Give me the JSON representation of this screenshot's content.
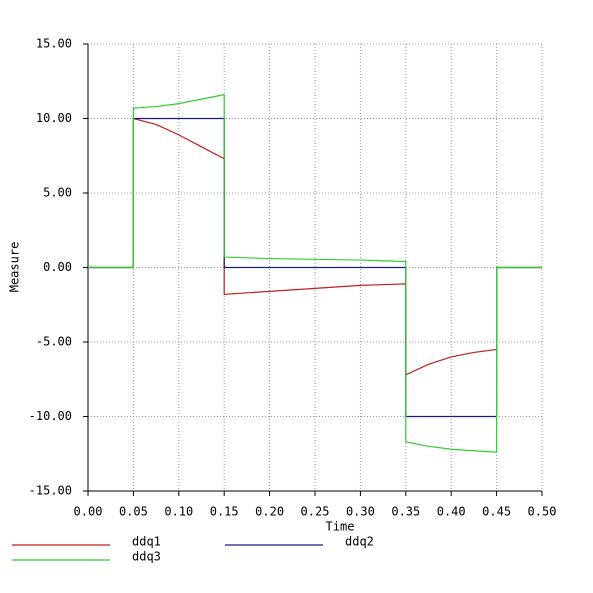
{
  "chart_data": {
    "type": "line",
    "x_label": "Time",
    "y_label": "Measure",
    "x": [
      0,
      0.05,
      0.05,
      0.075,
      0.1,
      0.125,
      0.15,
      0.15,
      0.2,
      0.25,
      0.3,
      0.35,
      0.35,
      0.375,
      0.4,
      0.425,
      0.45,
      0.45,
      0.5
    ],
    "series": [
      {
        "name": "ddq1",
        "color": "#c02020",
        "values": [
          0,
          0,
          10,
          9.6,
          8.9,
          8.1,
          7.3,
          -1.8,
          -1.6,
          -1.4,
          -1.2,
          -1.1,
          -7.2,
          -6.5,
          -6.0,
          -5.7,
          -5.5,
          0,
          0
        ]
      },
      {
        "name": "ddq2",
        "color": "#1a1a80",
        "values": [
          0,
          0,
          10,
          10,
          10,
          10,
          10,
          0,
          0,
          0,
          0,
          0,
          -10,
          -10,
          -10,
          -10,
          -10,
          0,
          0
        ]
      },
      {
        "name": "ddq3",
        "color": "#33cc33",
        "values": [
          0,
          0,
          10.7,
          10.8,
          11.0,
          11.3,
          11.6,
          0.7,
          0.6,
          0.55,
          0.5,
          0.4,
          -11.7,
          -12.0,
          -12.2,
          -12.3,
          -12.4,
          0,
          0
        ]
      }
    ],
    "xlim": [
      0,
      0.5
    ],
    "ylim": [
      -15,
      15
    ],
    "xticks": [
      {
        "value": 0,
        "label": "0.00"
      },
      {
        "value": 0.05,
        "label": "0.05"
      },
      {
        "value": 0.1,
        "label": "0.10"
      },
      {
        "value": 0.15,
        "label": "0.15"
      },
      {
        "value": 0.2,
        "label": "0.20"
      },
      {
        "value": 0.25,
        "label": "0.25"
      },
      {
        "value": 0.3,
        "label": "0.30"
      },
      {
        "value": 0.35,
        "label": "0.35"
      },
      {
        "value": 0.4,
        "label": "0.40"
      },
      {
        "value": 0.45,
        "label": "0.45"
      },
      {
        "value": 0.5,
        "label": "0.50"
      }
    ],
    "yticks": [
      {
        "value": -15,
        "label": "-15.00"
      },
      {
        "value": -10,
        "label": "-10.00"
      },
      {
        "value": -5,
        "label": "-5.00"
      },
      {
        "value": 0,
        "label": "0.00"
      },
      {
        "value": 5,
        "label": "5.00"
      },
      {
        "value": 10,
        "label": "10.00"
      },
      {
        "value": 15,
        "label": "15.00"
      }
    ],
    "grid": true
  }
}
